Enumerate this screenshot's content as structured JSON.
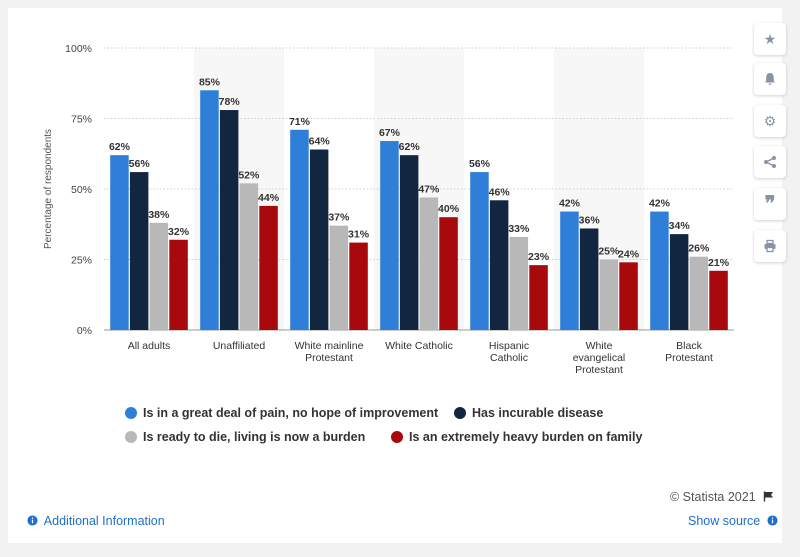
{
  "chart_data": {
    "type": "bar",
    "ylabel": "Percentage of respondents",
    "ylim": [
      0,
      100
    ],
    "yticks": [
      "0%",
      "25%",
      "50%",
      "75%",
      "100%"
    ],
    "tick_values": [
      0,
      25,
      50,
      75,
      100
    ],
    "grid": true,
    "legend_position": "bottom",
    "categories": [
      [
        "All adults"
      ],
      [
        "Unaffiliated"
      ],
      [
        "White mainline",
        "Protestant"
      ],
      [
        "White Catholic"
      ],
      [
        "Hispanic",
        "Catholic"
      ],
      [
        "White",
        "evangelical",
        "Protestant"
      ],
      [
        "Black",
        "Protestant"
      ]
    ],
    "series": [
      {
        "name": "Is in a great deal of pain, no hope of improvement",
        "color": "#2f7ed8",
        "values": [
          62,
          85,
          71,
          67,
          56,
          42,
          42
        ]
      },
      {
        "name": "Has incurable disease",
        "color": "#13263f",
        "values": [
          56,
          78,
          64,
          62,
          46,
          36,
          34
        ]
      },
      {
        "name": "Is ready to die, living is now a burden",
        "color": "#b8b8b8",
        "values": [
          38,
          52,
          37,
          47,
          33,
          25,
          26
        ]
      },
      {
        "name": "Is an extremely heavy burden on family",
        "color": "#a8090d",
        "values": [
          32,
          44,
          31,
          40,
          23,
          24,
          21
        ]
      }
    ]
  },
  "footer": {
    "additional_info": "Additional Information",
    "show_source": "Show source",
    "credit": "© Statista 2021"
  },
  "icons": [
    "star-icon",
    "bell-icon",
    "gear-icon",
    "share-icon",
    "quote-icon",
    "print-icon",
    "flag-icon",
    "info-icon"
  ]
}
